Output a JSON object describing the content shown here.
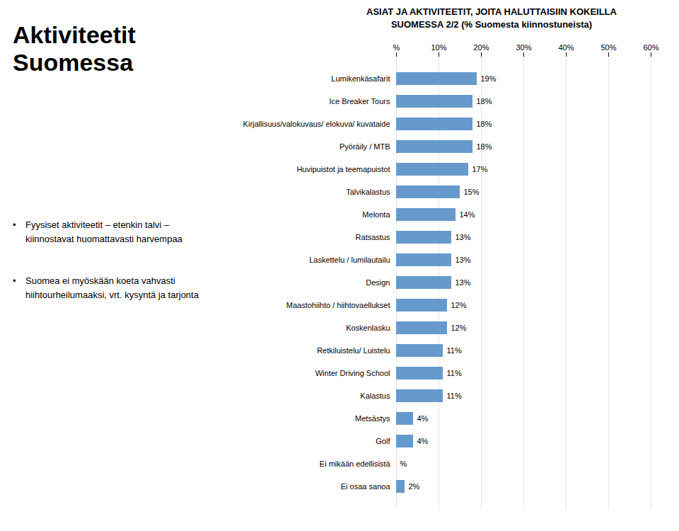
{
  "chart_data": {
    "type": "bar",
    "orientation": "horizontal",
    "title": "ASIAT JA AKTIVITEETIT, JOITA HALUTTAISIIN KOKEILLA",
    "subtitle": "SUOMESSA 2/2 (% Suomesta kiinnostuneista)",
    "annotations": [
      "Aktiviteetit\nSuomessa",
      "•\tFyysiset aktiviteetit – etenkin talvi –\nkiinnostavat huomattavasti harvempaa",
      "•\tSuomea ei myöskään koeta vahvasti\nhiihtourheilumaaksi, vrt. kysyntä ja tarjonta"
    ],
    "categories": [
      "Lumikenkäsafarit",
      "Ice Breaker Tours",
      "Kirjallisuus/valokuvaus/ elokuva/ kuvataide",
      "Pyöräily / MTB",
      "Huvipuistot ja teemapuistot",
      "Talvikalastus",
      "Melonta",
      "Ratsastus",
      "Laskettelu / lumilautailu",
      "Design",
      "Maastohiihto / hiihtovaellukset",
      "Koskenlasku",
      "Retkiluistelu/ Luistelu",
      "Winter Driving School",
      "Kalastus",
      "Metsästys",
      "Golf",
      "Ei mikään edellisistä",
      "Ei osaa sanoa"
    ],
    "values": [
      19,
      18,
      18,
      18,
      17,
      15,
      14,
      13,
      13,
      13,
      12,
      12,
      11,
      11,
      11,
      4,
      4,
      0,
      2
    ],
    "value_labels": [
      "19%",
      "18%",
      "18%",
      "18%",
      "17%",
      "15%",
      "14%",
      "13%",
      "13%",
      "13%",
      "12%",
      "12%",
      "11%",
      "11%",
      "11%",
      "4%",
      "4%",
      "%",
      "2%"
    ],
    "data_labels": true,
    "color": "#6699cc",
    "xlim": [
      0,
      60
    ],
    "xticks": [
      {
        "value": 0,
        "label": "%"
      },
      {
        "value": 10,
        "label": "10%"
      },
      {
        "value": 20,
        "label": "20%"
      },
      {
        "value": 30,
        "label": "30%"
      },
      {
        "value": 40,
        "label": "40%"
      },
      {
        "value": 50,
        "label": "50%"
      },
      {
        "value": 60,
        "label": "60%"
      }
    ],
    "grid": true
  }
}
